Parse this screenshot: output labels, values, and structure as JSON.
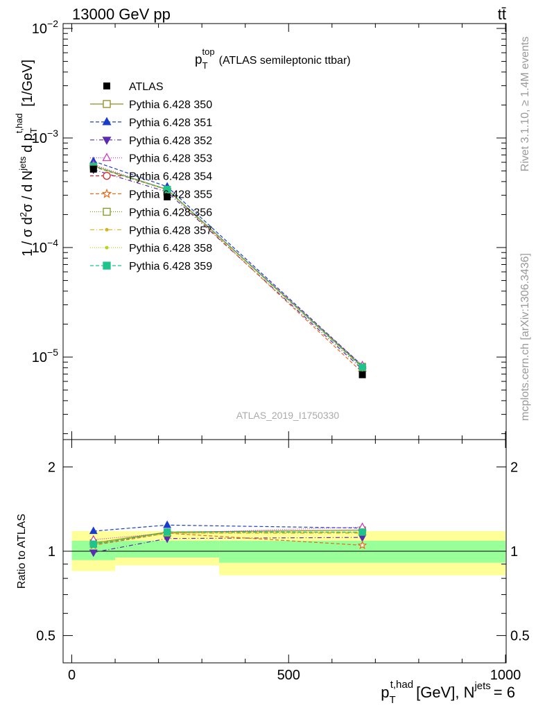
{
  "header": {
    "left": "13000 GeV pp",
    "right": "tt̄"
  },
  "side_labels": {
    "rivet": "Rivet 3.1.10, ≥ 1.4M events",
    "mcplots": "mcplots.cern.ch [arXiv:1306.3436]"
  },
  "chart_data": {
    "type": "line",
    "title": {
      "main": "p",
      "sub": "T",
      "sup": "top",
      "rest": "(ATLAS semileptonic ttbar)"
    },
    "watermark": "ATLAS_2019_I1750330",
    "xlabel": {
      "p": "p",
      "sub": "T",
      "sup": "t,had",
      "mid": "[GeV], N",
      "sup2": "jets",
      "end": "= 6"
    },
    "ylabel": {
      "text": "1 / σ d²σ / d N^jets d p_T^t,had [1/GeV]"
    },
    "ratio_ylabel": "Ratio to ATLAS",
    "x_ticks": [
      "0",
      "500",
      "1000"
    ],
    "y_ticks_main": [
      "10",
      "10",
      "10",
      "10"
    ],
    "y_ticks_main_exp": [
      "-2",
      "-3",
      "-4",
      "-5"
    ],
    "y_ticks_ratio": [
      "2",
      "1",
      "0.5"
    ],
    "xlim": [
      0,
      1000
    ],
    "ylim": [
      2.2e-06,
      0.0105
    ],
    "ratio_ylim": [
      0.4,
      2.5
    ],
    "log_y": true,
    "legend_position": "top-left",
    "bins": [
      [
        0,
        100
      ],
      [
        100,
        340
      ],
      [
        340,
        1000
      ]
    ],
    "x": [
      50,
      220,
      670
    ],
    "band": {
      "inner": [
        [
          0.93,
          1.09
        ],
        [
          0.95,
          1.09
        ],
        [
          0.91,
          1.09
        ]
      ],
      "outer": [
        [
          0.85,
          1.18
        ],
        [
          0.89,
          1.18
        ],
        [
          0.82,
          1.18
        ]
      ]
    },
    "data": {
      "name": "ATLAS",
      "values": [
        0.00052,
        0.00029,
        6.9e-06
      ]
    },
    "series": [
      {
        "name": "Pythia 6.428 350",
        "color": "#8c8c20",
        "dash": "none",
        "marker": "open-square",
        "ratio": [
          1.07,
          1.17,
          1.19
        ]
      },
      {
        "name": "Pythia 6.428 351",
        "color": "#1a3ccc",
        "dash": "5,3",
        "marker": "filled-triangle-up",
        "ratio": [
          1.18,
          1.24,
          1.21
        ]
      },
      {
        "name": "Pythia 6.428 352",
        "color": "#5a2ab0",
        "dash": "6,3,1,3",
        "marker": "filled-triangle-down",
        "ratio": [
          0.99,
          1.11,
          1.12
        ]
      },
      {
        "name": "Pythia 6.428 353",
        "color": "#cc2eb8",
        "dash": "1,2",
        "marker": "open-triangle-up",
        "ratio": [
          1.1,
          1.16,
          1.22
        ]
      },
      {
        "name": "Pythia 6.428 354",
        "color": "#dd1f1f",
        "dash": "5,3",
        "marker": "open-circle",
        "ratio": [
          1.06,
          1.17,
          1.17
        ]
      },
      {
        "name": "Pythia 6.428 355",
        "color": "#e86a1c",
        "dash": "5,3",
        "marker": "open-star",
        "ratio": [
          1.05,
          1.16,
          1.05
        ]
      },
      {
        "name": "Pythia 6.428 356",
        "color": "#7a9a1a",
        "dash": "1,2",
        "marker": "open-square",
        "ratio": [
          1.06,
          1.16,
          1.17
        ]
      },
      {
        "name": "Pythia 6.428 357",
        "color": "#d4b41a",
        "dash": "6,3,1,3",
        "marker": "small-dot",
        "ratio": [
          1.07,
          1.16,
          1.16
        ]
      },
      {
        "name": "Pythia 6.428 358",
        "color": "#b8d41a",
        "dash": "1,2",
        "marker": "small-dot",
        "ratio": [
          1.07,
          1.16,
          1.17
        ]
      },
      {
        "name": "Pythia 6.428 359",
        "color": "#1ec48a",
        "dash": "5,3",
        "marker": "filled-square",
        "ratio": [
          1.06,
          1.17,
          1.17
        ]
      }
    ],
    "colors": {
      "band_inner": "#99ff99",
      "band_outer": "#ffff99",
      "frame": "#000000"
    }
  }
}
